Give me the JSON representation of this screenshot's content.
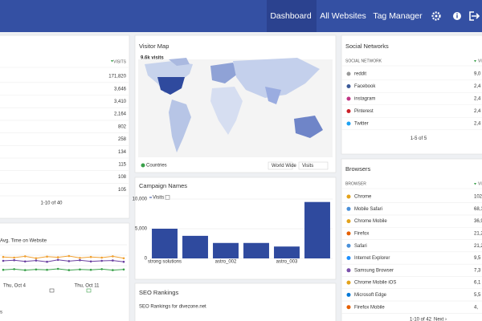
{
  "nav": {
    "items": [
      "Dashboard",
      "All Websites",
      "Tag Manager"
    ]
  },
  "left_table": {
    "column": "VISITS",
    "values": [
      "171,820",
      "3,646",
      "3,410",
      "2,164",
      "802",
      "258",
      "134",
      "115",
      "108",
      "105"
    ],
    "pagination": "1-10 of 40"
  },
  "evolution": {
    "legend": "Avg. Time on Website",
    "ylim": [
      0,
      100
    ],
    "series": [
      {
        "color": "#f0a030",
        "values": [
          62,
          60,
          64,
          58,
          63,
          61,
          65,
          59,
          62,
          60,
          64,
          58
        ]
      },
      {
        "color": "#6a3fa0",
        "values": [
          50,
          52,
          48,
          51,
          47,
          53,
          49,
          52,
          48,
          50,
          51,
          47
        ]
      },
      {
        "color": "#3aa04a",
        "values": [
          22,
          24,
          21,
          23,
          22,
          25,
          21,
          23,
          22,
          24,
          21,
          23
        ]
      }
    ],
    "x_labels": [
      "Thu, Oct 4",
      "Thu, Oct 11"
    ],
    "footer": "s"
  },
  "visitor_map": {
    "title": "Visitor Map",
    "summary": "9.6k visits",
    "view": "Countries",
    "region": "World Wide",
    "metric": "Visits"
  },
  "campaign": {
    "title": "Campaign Names",
    "legend": "Visits",
    "color": "#2f4a9e",
    "ylim": [
      0,
      10000
    ],
    "yticks": [
      {
        "value": 10000,
        "label": "10,000"
      },
      {
        "value": 5000,
        "label": "5,000"
      },
      0
    ],
    "categories": [
      "strong solutions",
      null,
      "astro_002",
      null,
      "astro_003",
      null
    ],
    "values": [
      5000,
      3800,
      2600,
      2600,
      2000,
      9500
    ]
  },
  "seo": {
    "title": "SEO Rankings",
    "subtitle": "SEO Rankings for divezone.net"
  },
  "social": {
    "title": "Social Networks",
    "columns": [
      "SOCIAL NETWORK",
      "VIS"
    ],
    "rows": [
      [
        "reddit",
        "9,0"
      ],
      [
        "Facebook",
        "2,4"
      ],
      [
        "instagram",
        "2,4"
      ],
      [
        "Pinterest",
        "2,4"
      ],
      [
        "Twitter",
        "2,4"
      ]
    ],
    "pagination": "1-5 of 5"
  },
  "browsers": {
    "title": "Browsers",
    "columns": [
      "BROWSER",
      "VISI"
    ],
    "rows": [
      [
        "Chrome",
        "102,5"
      ],
      [
        "Mobile Safari",
        "68,1"
      ],
      [
        "Chrome Mobile",
        "36,9"
      ],
      [
        "Firefox",
        "21,2"
      ],
      [
        "Safari",
        "21,2"
      ],
      [
        "Internet Explorer",
        "9,5"
      ],
      [
        "Samsung Browser",
        "7,3"
      ],
      [
        "Chrome Mobile iOS",
        "6,1"
      ],
      [
        "Microsoft Edge",
        "5,5"
      ],
      [
        "Firefox Mobile",
        "4,"
      ]
    ],
    "pagination": "1-10 of 42",
    "next": "Next ›"
  }
}
